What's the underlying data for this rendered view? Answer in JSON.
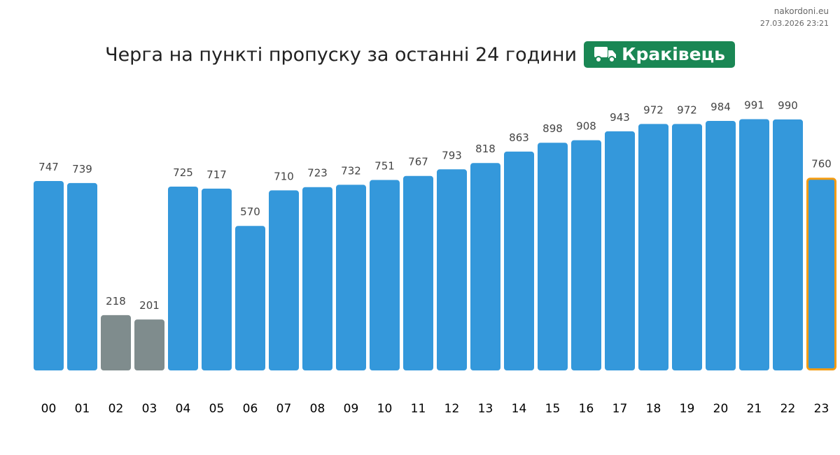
{
  "source": {
    "site": "nakordoni.eu",
    "datetime": "27.03.2026 23:21"
  },
  "title": "Черга на пункті пропуску за останні 24 години",
  "checkpoint": {
    "name": "Краківець",
    "icon": "truck-icon",
    "color": "#1a8754"
  },
  "chart_data": {
    "type": "bar",
    "title": "Черга на пункті пропуску за останні 24 години",
    "xlabel": "",
    "ylabel": "",
    "ylim": [
      0,
      1000
    ],
    "categories": [
      "00",
      "01",
      "02",
      "03",
      "04",
      "05",
      "06",
      "07",
      "08",
      "09",
      "10",
      "11",
      "12",
      "13",
      "14",
      "15",
      "16",
      "17",
      "18",
      "19",
      "20",
      "21",
      "22",
      "23"
    ],
    "values": [
      747,
      739,
      218,
      201,
      725,
      717,
      570,
      710,
      723,
      732,
      751,
      767,
      793,
      818,
      863,
      898,
      908,
      943,
      972,
      972,
      984,
      991,
      990,
      760
    ],
    "bar_colors": {
      "normal": "#3498db",
      "low": "#7f8c8d",
      "current_outline": "#f39c12"
    },
    "low_categories": [
      "02",
      "03"
    ],
    "highlight_category": "23",
    "grid": false
  }
}
